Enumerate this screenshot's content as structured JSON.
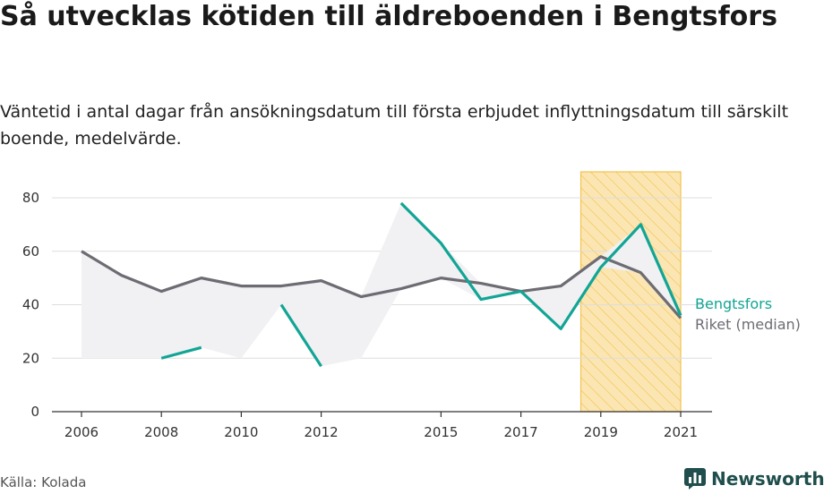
{
  "header": {
    "title": "Så utvecklas kötiden till äldreboenden i Bengtsfors",
    "subtitle": "Väntetid i antal dagar från ansökningsdatum till första erbjudet inflyttningsdatum till särskilt boende, medelvärde."
  },
  "footer": {
    "source": "Källa: Kolada",
    "brand": "Newsworthy"
  },
  "colors": {
    "bengtsfors": "#12a595",
    "riket": "#6e6c73",
    "band": "#f1f1f3",
    "highlight_fill": "#fbe6b3",
    "highlight_stroke": "#f3c24e",
    "grid": "#dddddd",
    "brand": "#1f4e4d"
  },
  "chart_data": {
    "type": "line",
    "x_ticks": [
      2006,
      2008,
      2010,
      2012,
      2015,
      2017,
      2019,
      2021
    ],
    "y_ticks": [
      0,
      20,
      40,
      60,
      80
    ],
    "xlim": [
      2006,
      2021
    ],
    "ylim": [
      0,
      80
    ],
    "grid": true,
    "highlight_range": [
      2018.5,
      2021
    ],
    "series": [
      {
        "name": "Bengtsfors",
        "x": [
          2006,
          2007,
          2008,
          2009,
          2010,
          2011,
          2012,
          2013,
          2014,
          2015,
          2016,
          2017,
          2018,
          2019,
          2020,
          2021
        ],
        "values": [
          null,
          null,
          20,
          24,
          null,
          40,
          17,
          null,
          78,
          63,
          42,
          45,
          31,
          54,
          70,
          36
        ]
      },
      {
        "name": "Riket (median)",
        "x": [
          2006,
          2007,
          2008,
          2009,
          2010,
          2011,
          2012,
          2013,
          2014,
          2015,
          2016,
          2017,
          2018,
          2019,
          2020,
          2021
        ],
        "values": [
          60,
          51,
          45,
          50,
          47,
          47,
          49,
          43,
          46,
          50,
          48,
          45,
          47,
          58,
          52,
          35
        ]
      }
    ],
    "series_labels": [
      "Bengtsfors",
      "Riket (median)"
    ]
  }
}
